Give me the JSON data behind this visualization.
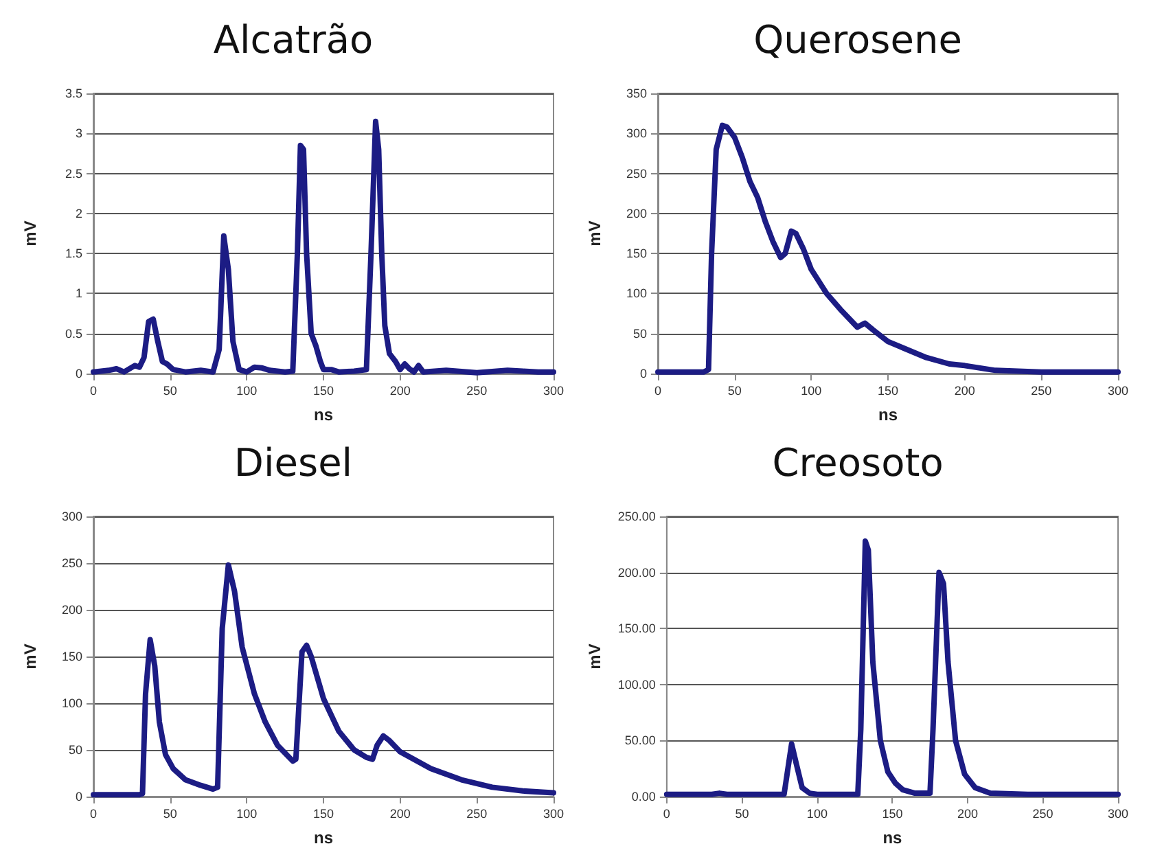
{
  "chart_data": [
    {
      "type": "line",
      "title": "Alcatrão",
      "xlabel": "ns",
      "ylabel": "mV",
      "xlim": [
        0,
        300
      ],
      "xticks": [
        0,
        50,
        100,
        150,
        200,
        250,
        300
      ],
      "ylim": [
        0,
        3.5
      ],
      "yticks": [
        0,
        0.5,
        1,
        1.5,
        2,
        2.5,
        3,
        3.5
      ],
      "grid": "y",
      "series": [
        {
          "color": "#1c1c84",
          "x": [
            0,
            10,
            15,
            20,
            27,
            30,
            33,
            36,
            39,
            42,
            45,
            48,
            52,
            60,
            70,
            78,
            82,
            85,
            88,
            91,
            95,
            100,
            105,
            110,
            115,
            125,
            130,
            133,
            135,
            137,
            139,
            142,
            145,
            148,
            150,
            155,
            160,
            170,
            178,
            181,
            184,
            186,
            188,
            190,
            193,
            197,
            200,
            203,
            206,
            209,
            212,
            215,
            230,
            250,
            270,
            280,
            290,
            300
          ],
          "values": [
            0.02,
            0.04,
            0.06,
            0.02,
            0.1,
            0.08,
            0.2,
            0.65,
            0.68,
            0.4,
            0.15,
            0.12,
            0.05,
            0.02,
            0.04,
            0.02,
            0.3,
            1.72,
            1.3,
            0.4,
            0.05,
            0.02,
            0.08,
            0.07,
            0.04,
            0.02,
            0.03,
            1.5,
            2.85,
            2.8,
            1.5,
            0.5,
            0.35,
            0.15,
            0.05,
            0.05,
            0.02,
            0.03,
            0.05,
            1.5,
            3.15,
            2.8,
            1.5,
            0.6,
            0.25,
            0.15,
            0.05,
            0.12,
            0.06,
            0.02,
            0.1,
            0.02,
            0.04,
            0.01,
            0.04,
            0.03,
            0.02,
            0.02
          ]
        }
      ]
    },
    {
      "type": "line",
      "title": "Querosene",
      "xlabel": "ns",
      "ylabel": "mV",
      "xlim": [
        0,
        300
      ],
      "xticks": [
        0,
        50,
        100,
        150,
        200,
        250,
        300
      ],
      "ylim": [
        0,
        350
      ],
      "yticks": [
        0,
        50,
        100,
        150,
        200,
        250,
        300,
        350
      ],
      "grid": "y",
      "series": [
        {
          "color": "#1c1c84",
          "x": [
            0,
            30,
            33,
            35,
            38,
            42,
            45,
            50,
            55,
            60,
            65,
            70,
            75,
            80,
            83,
            87,
            90,
            95,
            100,
            110,
            120,
            130,
            135,
            140,
            150,
            160,
            175,
            190,
            200,
            220,
            250,
            300
          ],
          "values": [
            2,
            2,
            5,
            150,
            280,
            310,
            308,
            295,
            270,
            240,
            220,
            190,
            165,
            145,
            150,
            178,
            175,
            155,
            130,
            100,
            78,
            58,
            63,
            55,
            40,
            32,
            20,
            12,
            10,
            4,
            2,
            2
          ]
        }
      ]
    },
    {
      "type": "line",
      "title": "Diesel",
      "xlabel": "ns",
      "ylabel": "mV",
      "xlim": [
        0,
        300
      ],
      "xticks": [
        0,
        50,
        100,
        150,
        200,
        250,
        300
      ],
      "ylim": [
        0,
        300
      ],
      "yticks": [
        0,
        50,
        100,
        150,
        200,
        250,
        300
      ],
      "grid": "y",
      "series": [
        {
          "color": "#1c1c84",
          "x": [
            0,
            30,
            32,
            34,
            37,
            40,
            43,
            47,
            52,
            60,
            70,
            78,
            81,
            84,
            88,
            92,
            97,
            105,
            112,
            120,
            130,
            132,
            136,
            139,
            142,
            150,
            160,
            170,
            178,
            182,
            185,
            189,
            193,
            200,
            220,
            240,
            260,
            280,
            300
          ],
          "values": [
            2,
            2,
            3,
            110,
            168,
            140,
            80,
            45,
            30,
            18,
            12,
            8,
            10,
            180,
            248,
            220,
            160,
            110,
            80,
            55,
            38,
            40,
            155,
            162,
            150,
            105,
            70,
            50,
            42,
            40,
            55,
            65,
            60,
            48,
            30,
            18,
            10,
            6,
            4
          ]
        }
      ]
    },
    {
      "type": "line",
      "title": "Creosoto",
      "xlabel": "ns",
      "ylabel": "mV",
      "xlim": [
        0,
        300
      ],
      "xticks": [
        0,
        50,
        100,
        150,
        200,
        250,
        300
      ],
      "ylim": [
        0,
        250
      ],
      "yticks": [
        {
          "value": 0,
          "label": "0.00"
        },
        {
          "value": 50,
          "label": "50.00"
        },
        {
          "value": 100,
          "label": "100.00"
        },
        {
          "value": 150,
          "label": "150.00"
        },
        {
          "value": 200,
          "label": "200.00"
        },
        {
          "value": 250,
          "label": "250.00"
        }
      ],
      "grid": "y",
      "series": [
        {
          "color": "#1c1c84",
          "x": [
            0,
            30,
            35,
            40,
            78,
            80,
            83,
            86,
            90,
            95,
            100,
            127,
            129,
            132,
            134,
            137,
            142,
            147,
            152,
            157,
            165,
            175,
            177,
            181,
            184,
            187,
            192,
            198,
            205,
            215,
            240,
            300
          ],
          "values": [
            2,
            2,
            3,
            2,
            2,
            20,
            47,
            30,
            8,
            3,
            2,
            2,
            60,
            228,
            220,
            120,
            50,
            22,
            12,
            6,
            3,
            3,
            60,
            200,
            190,
            120,
            50,
            20,
            8,
            3,
            2,
            2
          ]
        }
      ]
    }
  ]
}
